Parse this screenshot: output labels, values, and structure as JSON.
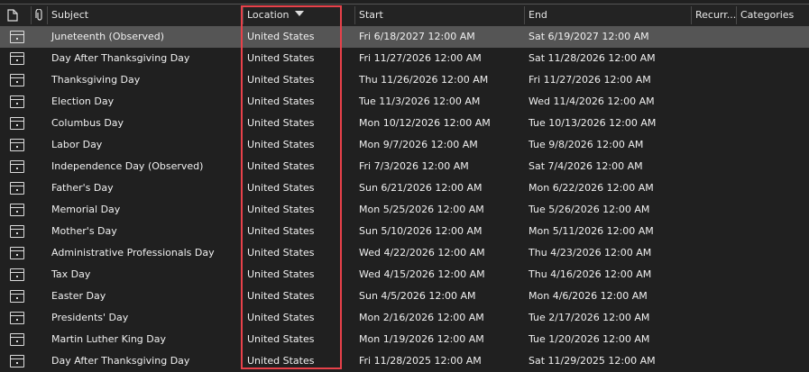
{
  "columns": {
    "icon": "",
    "attachment": "",
    "subject": "Subject",
    "location": "Location",
    "start": "Start",
    "end": "End",
    "recurrence": "Recurr...",
    "categories": "Categories"
  },
  "sort": {
    "column": "location",
    "direction": "descending"
  },
  "highlight_color": "#e8414a",
  "rows": [
    {
      "subject": "Juneteenth (Observed)",
      "location": "United States",
      "start": "Fri 6/18/2027 12:00 AM",
      "end": "Sat 6/19/2027 12:00 AM",
      "selected": true
    },
    {
      "subject": "Day After Thanksgiving Day",
      "location": "United States",
      "start": "Fri 11/27/2026 12:00 AM",
      "end": "Sat 11/28/2026 12:00 AM"
    },
    {
      "subject": "Thanksgiving Day",
      "location": "United States",
      "start": "Thu 11/26/2026 12:00 AM",
      "end": "Fri 11/27/2026 12:00 AM"
    },
    {
      "subject": "Election Day",
      "location": "United States",
      "start": "Tue 11/3/2026 12:00 AM",
      "end": "Wed 11/4/2026 12:00 AM"
    },
    {
      "subject": "Columbus Day",
      "location": "United States",
      "start": "Mon 10/12/2026 12:00 AM",
      "end": "Tue 10/13/2026 12:00 AM"
    },
    {
      "subject": "Labor Day",
      "location": "United States",
      "start": "Mon 9/7/2026 12:00 AM",
      "end": "Tue 9/8/2026 12:00 AM"
    },
    {
      "subject": "Independence Day (Observed)",
      "location": "United States",
      "start": "Fri 7/3/2026 12:00 AM",
      "end": "Sat 7/4/2026 12:00 AM"
    },
    {
      "subject": "Father's Day",
      "location": "United States",
      "start": "Sun 6/21/2026 12:00 AM",
      "end": "Mon 6/22/2026 12:00 AM"
    },
    {
      "subject": "Memorial Day",
      "location": "United States",
      "start": "Mon 5/25/2026 12:00 AM",
      "end": "Tue 5/26/2026 12:00 AM"
    },
    {
      "subject": "Mother's Day",
      "location": "United States",
      "start": "Sun 5/10/2026 12:00 AM",
      "end": "Mon 5/11/2026 12:00 AM"
    },
    {
      "subject": "Administrative Professionals Day",
      "location": "United States",
      "start": "Wed 4/22/2026 12:00 AM",
      "end": "Thu 4/23/2026 12:00 AM"
    },
    {
      "subject": "Tax Day",
      "location": "United States",
      "start": "Wed 4/15/2026 12:00 AM",
      "end": "Thu 4/16/2026 12:00 AM"
    },
    {
      "subject": "Easter Day",
      "location": "United States",
      "start": "Sun 4/5/2026 12:00 AM",
      "end": "Mon 4/6/2026 12:00 AM"
    },
    {
      "subject": "Presidents' Day",
      "location": "United States",
      "start": "Mon 2/16/2026 12:00 AM",
      "end": "Tue 2/17/2026 12:00 AM"
    },
    {
      "subject": "Martin Luther King Day",
      "location": "United States",
      "start": "Mon 1/19/2026 12:00 AM",
      "end": "Tue 1/20/2026 12:00 AM"
    },
    {
      "subject": "Day After Thanksgiving Day",
      "location": "United States",
      "start": "Fri 11/28/2025 12:00 AM",
      "end": "Sat 11/29/2025 12:00 AM"
    }
  ]
}
